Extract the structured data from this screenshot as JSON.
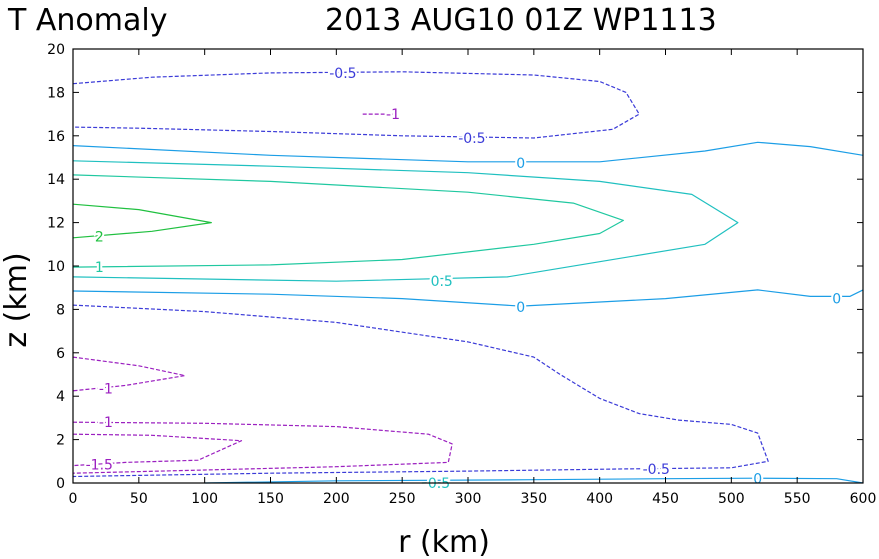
{
  "chart_data": {
    "type": "contour",
    "title_left": "T Anomaly",
    "title_right": "2013 AUG10 01Z   WP1113",
    "xlabel": "r (km)",
    "ylabel": "z (km)",
    "xlim": [
      0,
      600
    ],
    "ylim": [
      0,
      20
    ],
    "xticks": [
      0,
      50,
      100,
      150,
      200,
      250,
      300,
      350,
      400,
      450,
      500,
      550,
      600
    ],
    "yticks": [
      0,
      2,
      4,
      6,
      8,
      10,
      12,
      14,
      16,
      18,
      20
    ],
    "contours": [
      {
        "level": -0.5,
        "label": "-0.5",
        "color": "#3b3bd8",
        "dashed": true,
        "points": [
          [
            0,
            18.4
          ],
          [
            60,
            18.7
          ],
          [
            150,
            18.9
          ],
          [
            250,
            18.95
          ],
          [
            350,
            18.8
          ],
          [
            400,
            18.5
          ],
          [
            420,
            18.0
          ],
          [
            430,
            17.0
          ],
          [
            410,
            16.3
          ],
          [
            350,
            15.9
          ],
          [
            250,
            16.0
          ],
          [
            150,
            16.2
          ],
          [
            50,
            16.35
          ],
          [
            0,
            16.4
          ]
        ],
        "labels": [
          {
            "x": 205,
            "y": 18.9
          },
          {
            "x": 303,
            "y": 15.9
          }
        ]
      },
      {
        "level": -1,
        "label": "-1",
        "color": "#9b1fc0",
        "dashed": true,
        "points": [
          [
            220,
            17.0
          ],
          [
            243,
            17.0
          ]
        ],
        "labels": [
          {
            "x": 243,
            "y": 17.0
          }
        ]
      },
      {
        "level": 0,
        "label": "0",
        "color": "#1c9ee6",
        "dashed": false,
        "points": [
          [
            0,
            15.55
          ],
          [
            150,
            15.1
          ],
          [
            300,
            14.8
          ],
          [
            400,
            14.8
          ],
          [
            480,
            15.3
          ],
          [
            520,
            15.7
          ],
          [
            560,
            15.5
          ],
          [
            600,
            15.1
          ]
        ],
        "labels": [
          {
            "x": 340,
            "y": 14.75
          }
        ]
      },
      {
        "level": 0.5,
        "label": "0.5",
        "color": "#20c0c0",
        "dashed": false,
        "points": [
          [
            0,
            14.85
          ],
          [
            150,
            14.6
          ],
          [
            300,
            14.3
          ],
          [
            400,
            13.9
          ],
          [
            470,
            13.3
          ],
          [
            505,
            12.0
          ],
          [
            480,
            11.0
          ],
          [
            400,
            10.2
          ],
          [
            330,
            9.5
          ],
          [
            200,
            9.3
          ],
          [
            0,
            9.5
          ]
        ],
        "labels": [
          {
            "x": 280,
            "y": 9.3
          }
        ]
      },
      {
        "level": 1,
        "label": "1",
        "color": "#20c8a0",
        "dashed": false,
        "points": [
          [
            0,
            14.2
          ],
          [
            150,
            13.9
          ],
          [
            300,
            13.4
          ],
          [
            380,
            12.9
          ],
          [
            418,
            12.1
          ],
          [
            400,
            11.5
          ],
          [
            350,
            11.0
          ],
          [
            250,
            10.3
          ],
          [
            150,
            10.05
          ],
          [
            0,
            9.95
          ]
        ],
        "labels": [
          {
            "x": 20,
            "y": 9.95
          }
        ]
      },
      {
        "level": 2,
        "label": "2",
        "color": "#20c040",
        "dashed": false,
        "points": [
          [
            0,
            12.85
          ],
          [
            50,
            12.6
          ],
          [
            105,
            12.0
          ],
          [
            60,
            11.6
          ],
          [
            0,
            11.3
          ]
        ],
        "labels": [
          {
            "x": 20,
            "y": 11.35
          }
        ]
      },
      {
        "level": 0,
        "label": "0",
        "color": "#1c9ee6",
        "dashed": false,
        "points": [
          [
            0,
            8.85
          ],
          [
            150,
            8.7
          ],
          [
            250,
            8.5
          ],
          [
            340,
            8.15
          ],
          [
            450,
            8.5
          ],
          [
            520,
            8.9
          ],
          [
            560,
            8.6
          ],
          [
            590,
            8.6
          ],
          [
            600,
            8.9
          ]
        ],
        "labels": [
          {
            "x": 340,
            "y": 8.1
          },
          {
            "x": 580,
            "y": 8.5
          }
        ]
      },
      {
        "level": -0.5,
        "label": "-0.5",
        "color": "#3b3bd8",
        "dashed": true,
        "points": [
          [
            0,
            8.2
          ],
          [
            100,
            7.9
          ],
          [
            200,
            7.4
          ],
          [
            300,
            6.5
          ],
          [
            350,
            5.8
          ],
          [
            370,
            5.0
          ],
          [
            400,
            3.9
          ],
          [
            430,
            3.2
          ],
          [
            460,
            2.9
          ],
          [
            500,
            2.7
          ],
          [
            520,
            2.3
          ],
          [
            528,
            1.0
          ],
          [
            500,
            0.7
          ],
          [
            420,
            0.65
          ],
          [
            300,
            0.55
          ],
          [
            150,
            0.45
          ],
          [
            50,
            0.35
          ],
          [
            0,
            0.3
          ]
        ],
        "labels": [
          {
            "x": 443,
            "y": 0.65
          }
        ]
      },
      {
        "level": -1,
        "label": "-1",
        "color": "#9b1fc0",
        "dashed": true,
        "points": [
          [
            0,
            5.8
          ],
          [
            50,
            5.4
          ],
          [
            85,
            4.95
          ],
          [
            40,
            4.5
          ],
          [
            0,
            4.25
          ]
        ],
        "labels": [
          {
            "x": 25,
            "y": 4.35
          }
        ]
      },
      {
        "level": -1,
        "label": "-1",
        "color": "#9b1fc0",
        "dashed": true,
        "points": [
          [
            0,
            2.8
          ],
          [
            100,
            2.75
          ],
          [
            200,
            2.6
          ],
          [
            270,
            2.25
          ],
          [
            288,
            1.8
          ],
          [
            285,
            0.95
          ],
          [
            200,
            0.75
          ],
          [
            100,
            0.6
          ],
          [
            0,
            0.45
          ]
        ],
        "labels": [
          {
            "x": 25,
            "y": 2.8
          }
        ]
      },
      {
        "level": -1.5,
        "label": "-1.5",
        "color": "#9b1fc0",
        "dashed": true,
        "points": [
          [
            0,
            2.25
          ],
          [
            60,
            2.2
          ],
          [
            128,
            1.95
          ],
          [
            95,
            1.05
          ],
          [
            40,
            0.95
          ],
          [
            0,
            0.8
          ]
        ],
        "labels": [
          {
            "x": 20,
            "y": 0.85
          }
        ]
      },
      {
        "level": 0,
        "label": "0",
        "color": "#1c9ee6",
        "dashed": false,
        "points": [
          [
            100,
            0.0
          ],
          [
            200,
            0.1
          ],
          [
            350,
            0.15
          ],
          [
            450,
            0.2
          ],
          [
            520,
            0.22
          ],
          [
            580,
            0.2
          ],
          [
            600,
            0.0
          ]
        ],
        "labels": [
          {
            "x": 520,
            "y": 0.2
          }
        ]
      },
      {
        "level": 0.5,
        "label": "0.5",
        "color": "#20c0c0",
        "dashed": false,
        "points": [
          [
            265,
            0.0
          ],
          [
            275,
            0.02
          ],
          [
            280,
            0.0
          ]
        ],
        "labels": [
          {
            "x": 278,
            "y": 0.0
          }
        ]
      }
    ]
  }
}
